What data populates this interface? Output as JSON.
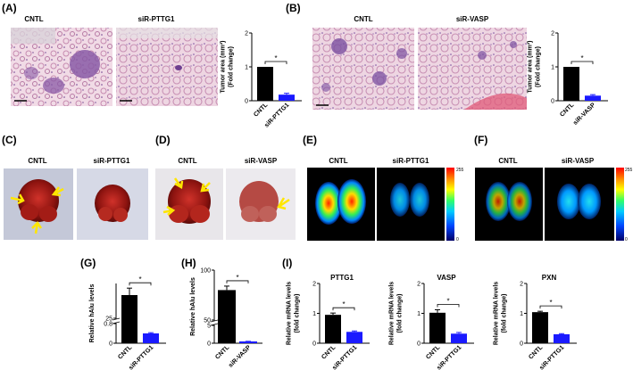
{
  "panels": {
    "A": {
      "label": "(A)",
      "img_left": "CNTL",
      "img_right": "siR-PTTG1"
    },
    "B": {
      "label": "(B)",
      "img_left": "CNTL",
      "img_right": "siR-VASP"
    },
    "C": {
      "label": "(C)",
      "img_left": "CNTL",
      "img_right": "siR-PTTG1"
    },
    "D": {
      "label": "(D)",
      "img_left": "CNTL",
      "img_right": "siR-VASP"
    },
    "E": {
      "label": "(E)",
      "img_left": "CNTL",
      "img_right": "siR-PTTG1",
      "scale_max": "255",
      "scale_min": "0"
    },
    "F": {
      "label": "(F)",
      "img_left": "CNTL",
      "img_right": "siR-VASP",
      "scale_max": "255",
      "scale_min": "0"
    },
    "G": {
      "label": "(G)"
    },
    "H": {
      "label": "(H)"
    },
    "I": {
      "label": "(I)"
    }
  },
  "colors": {
    "control": "#000000",
    "treated": "#1a1aff",
    "tissue_pink": "#e8c4d6",
    "tissue_purple": "#7a4fa0"
  },
  "chart_data": [
    {
      "id": "A-chart",
      "type": "bar",
      "categories": [
        "CNTL",
        "siR-PTTG1"
      ],
      "values": [
        1.0,
        0.18
      ],
      "errors": [
        0,
        0.04
      ],
      "ylabel": "Tumor area (mm²)\n(Fold change)",
      "ylim": [
        0,
        2
      ],
      "yticks": [
        "0",
        "1",
        "2"
      ],
      "significance": "*"
    },
    {
      "id": "B-chart",
      "type": "bar",
      "categories": [
        "CNTL",
        "siR-VASP"
      ],
      "values": [
        1.0,
        0.15
      ],
      "errors": [
        0,
        0.03
      ],
      "ylabel": "Tumor area (mm²)\n(Fold change)",
      "ylim": [
        0,
        2
      ],
      "yticks": [
        "0",
        "1",
        "2"
      ],
      "significance": "*"
    },
    {
      "id": "G-chart",
      "type": "bar",
      "categories": [
        "CNTL",
        "siR-PTTG1"
      ],
      "values": [
        35,
        0.4
      ],
      "errors": [
        3,
        0.03
      ],
      "ylabel": "Relative hAlu levels",
      "yticks": [
        "0",
        "0.8",
        "25"
      ],
      "axis_break": true,
      "significance": "*"
    },
    {
      "id": "H-chart",
      "type": "bar",
      "categories": [
        "CNTL",
        "siR-VASP"
      ],
      "values": [
        80,
        0.5
      ],
      "errors": [
        4,
        0.03
      ],
      "ylabel": "Relative hAlu levels",
      "yticks": [
        "0",
        "5",
        "50",
        "100"
      ],
      "axis_break": true,
      "significance": "*"
    },
    {
      "id": "I1-chart",
      "type": "bar",
      "title": "PTTG1",
      "categories": [
        "CNTL",
        "siR-PTTG1"
      ],
      "values": [
        0.95,
        0.38
      ],
      "errors": [
        0.06,
        0.03
      ],
      "ylabel": "Relative mRNA levels\n(fold change)",
      "ylim": [
        0,
        2
      ],
      "yticks": [
        "0",
        "1",
        "2"
      ],
      "significance": "*"
    },
    {
      "id": "I2-chart",
      "type": "bar",
      "title": "VASP",
      "categories": [
        "CNTL",
        "siR-PTTG1"
      ],
      "values": [
        1.02,
        0.32
      ],
      "errors": [
        0.1,
        0.04
      ],
      "ylabel": "Relative mRNA levels\n(fold change)",
      "ylim": [
        0,
        2
      ],
      "yticks": [
        "0",
        "1",
        "2"
      ],
      "significance": "*"
    },
    {
      "id": "I3-chart",
      "type": "bar",
      "title": "PXN",
      "categories": [
        "CNTL",
        "siR-PTTG1"
      ],
      "values": [
        1.04,
        0.3
      ],
      "errors": [
        0.03,
        0.02
      ],
      "ylabel": "Relative mRNA levels\n(fold change)",
      "ylim": [
        0,
        2
      ],
      "yticks": [
        "0",
        "1",
        "2"
      ],
      "significance": "*"
    }
  ]
}
